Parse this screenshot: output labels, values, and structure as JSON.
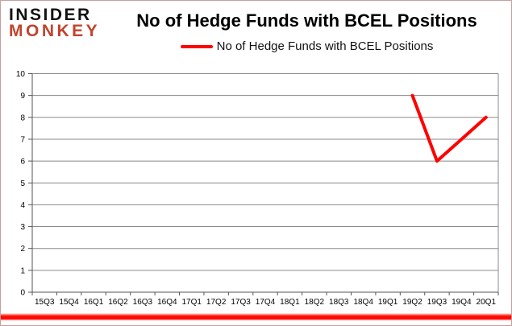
{
  "brand": {
    "name": "Insider Monkey",
    "line1": "INSIDER",
    "line2": "MONKEY"
  },
  "header": {
    "title": "No of Hedge Funds with BCEL Positions"
  },
  "legend": {
    "label": "No of Hedge Funds with BCEL Positions"
  },
  "chart_data": {
    "type": "line",
    "title": "No of Hedge Funds with BCEL Positions",
    "categories": [
      "15Q3",
      "15Q4",
      "16Q1",
      "16Q2",
      "16Q3",
      "16Q4",
      "17Q1",
      "17Q2",
      "17Q3",
      "17Q4",
      "18Q1",
      "18Q2",
      "18Q3",
      "18Q4",
      "19Q1",
      "19Q2",
      "19Q3",
      "19Q4",
      "20Q1"
    ],
    "series": [
      {
        "name": "No of Hedge Funds with BCEL Positions",
        "color": "#ff0000",
        "values": [
          null,
          null,
          null,
          null,
          null,
          null,
          null,
          null,
          null,
          null,
          null,
          null,
          null,
          null,
          null,
          9,
          6,
          7,
          8
        ]
      }
    ],
    "ylim": [
      0,
      10
    ],
    "ytick_step": 1,
    "grid": true,
    "legend_position": "top-center",
    "xlabel": "",
    "ylabel": ""
  },
  "colors": {
    "series_line": "#ff0000",
    "gridline": "#8a8a8a",
    "axis": "#555555",
    "label_text": "#000000",
    "logo_black": "#121212",
    "logo_red": "#c0432c",
    "frame_border": "#c79f9f",
    "bottom_bar_red": "#ff0000",
    "background": "#ffffff"
  }
}
